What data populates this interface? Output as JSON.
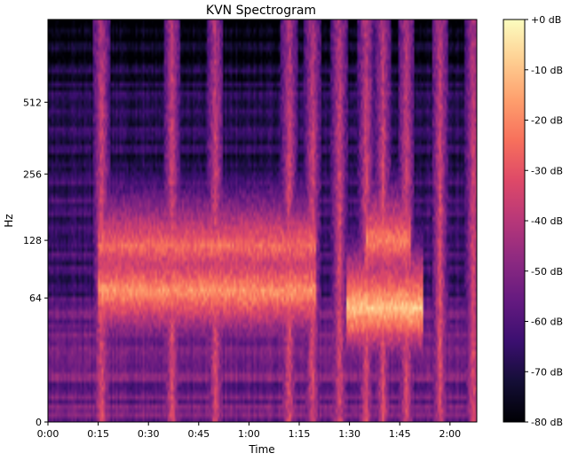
{
  "chart_data": {
    "type": "heatmap",
    "title": "KVN Spectrogram",
    "xlabel": "Time",
    "ylabel": "Hz",
    "x_range_seconds": [
      0,
      128
    ],
    "x_ticks": [
      {
        "value": 0,
        "label": "0:00"
      },
      {
        "value": 15,
        "label": "0:15"
      },
      {
        "value": 30,
        "label": "0:30"
      },
      {
        "value": 45,
        "label": "0:45"
      },
      {
        "value": 60,
        "label": "1:00"
      },
      {
        "value": 75,
        "label": "1:15"
      },
      {
        "value": 90,
        "label": "1:30"
      },
      {
        "value": 105,
        "label": "1:45"
      },
      {
        "value": 120,
        "label": "2:00"
      }
    ],
    "y_scale": "log2-mel",
    "y_range_hz": [
      0,
      1100
    ],
    "y_ticks": [
      {
        "value": 0,
        "label": "0"
      },
      {
        "value": 64,
        "label": "64"
      },
      {
        "value": 128,
        "label": "128"
      },
      {
        "value": 256,
        "label": "256"
      },
      {
        "value": 512,
        "label": "512"
      }
    ],
    "colorbar": {
      "colormap": "magma",
      "range_db": [
        -80,
        0
      ],
      "ticks": [
        {
          "value": 0,
          "label": "+0 dB"
        },
        {
          "value": -10,
          "label": "-10 dB"
        },
        {
          "value": -20,
          "label": "-20 dB"
        },
        {
          "value": -30,
          "label": "-30 dB"
        },
        {
          "value": -40,
          "label": "-40 dB"
        },
        {
          "value": -50,
          "label": "-50 dB"
        },
        {
          "value": -60,
          "label": "-60 dB"
        },
        {
          "value": -70,
          "label": "-70 dB"
        },
        {
          "value": -80,
          "label": "-80 dB"
        }
      ]
    },
    "onsets_seconds": [
      16,
      37,
      50,
      72,
      79,
      87,
      95,
      100,
      107,
      117,
      127
    ],
    "sustained_notes": [
      {
        "start": 15,
        "end": 80,
        "hz": 70,
        "level_db": -18
      },
      {
        "start": 15,
        "end": 80,
        "hz": 120,
        "level_db": -25
      },
      {
        "start": 89,
        "end": 112,
        "hz": 56,
        "level_db": -10
      },
      {
        "start": 95,
        "end": 108,
        "hz": 128,
        "level_db": -22
      }
    ],
    "colors": {
      "magma": [
        "#000004",
        "#140e36",
        "#3b0f70",
        "#641a80",
        "#8c2981",
        "#b73779",
        "#de4968",
        "#f7705c",
        "#fe9f6d",
        "#fecf92",
        "#fcfdbf"
      ]
    }
  }
}
